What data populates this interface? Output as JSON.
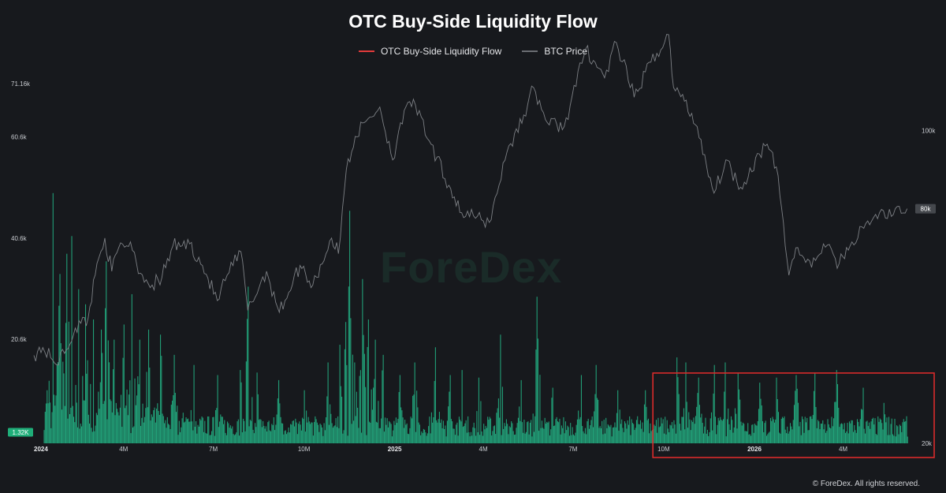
{
  "page": {
    "title": "OTC Buy-Side Liquidity Flow",
    "watermark": "ForeDex",
    "copyright": "© ForeDex. All rights reserved."
  },
  "legend": [
    {
      "label": "OTC Buy-Side Liquidity Flow",
      "color": "#e23b3b"
    },
    {
      "label": "BTC Price",
      "color": "#6a6d72"
    }
  ],
  "colors": {
    "background": "#17191d",
    "bars": "#22a37a",
    "price_line": "#7d8085",
    "highlight_box": "#d92b2b",
    "current_flow_tag": "#1fae79",
    "current_price_tag": "#45484d"
  },
  "chart_data": {
    "type": "bar",
    "title": "OTC Buy-Side Liquidity Flow",
    "x_axis": {
      "start": "2024-01-01",
      "end": "2026-06-10",
      "ticks": [
        {
          "date": "2024-01-01",
          "label": "2024",
          "bold": true
        },
        {
          "date": "2024-04-01",
          "label": "4M",
          "bold": false
        },
        {
          "date": "2024-07-01",
          "label": "7M",
          "bold": false
        },
        {
          "date": "2024-10-01",
          "label": "10M",
          "bold": false
        },
        {
          "date": "2025-01-01",
          "label": "2025",
          "bold": true
        },
        {
          "date": "2025-04-01",
          "label": "4M",
          "bold": false
        },
        {
          "date": "2025-07-01",
          "label": "7M",
          "bold": false
        },
        {
          "date": "2025-10-01",
          "label": "10M",
          "bold": false
        },
        {
          "date": "2026-01-01",
          "label": "2026",
          "bold": true
        },
        {
          "date": "2026-04-01",
          "label": "4M",
          "bold": false
        }
      ]
    },
    "left_axis": {
      "name": "OTC Buy-Side Liquidity Flow",
      "ylim": [
        0,
        71160
      ],
      "ticks": [
        {
          "value": 20600,
          "label": "20.6k"
        },
        {
          "value": 40600,
          "label": "40.6k"
        },
        {
          "value": 60600,
          "label": "60.6k"
        },
        {
          "value": 71160,
          "label": "71.16k"
        }
      ]
    },
    "right_axis": {
      "name": "BTC Price",
      "ylim": [
        20000,
        112000
      ],
      "ticks": [
        {
          "value": 20000,
          "label": "20k"
        },
        {
          "value": 100000,
          "label": "100k"
        }
      ]
    },
    "current_values": {
      "flow": "1.32K",
      "price": "80k"
    },
    "price_series": {
      "name": "BTC Price",
      "points": [
        [
          "2024-01-01",
          42500
        ],
        [
          "2024-01-10",
          44500
        ],
        [
          "2024-01-22",
          40500
        ],
        [
          "2024-02-01",
          43000
        ],
        [
          "2024-02-12",
          49500
        ],
        [
          "2024-02-25",
          52000
        ],
        [
          "2024-03-05",
          66000
        ],
        [
          "2024-03-13",
          72500
        ],
        [
          "2024-03-20",
          64000
        ],
        [
          "2024-03-27",
          70000
        ],
        [
          "2024-04-08",
          71500
        ],
        [
          "2024-04-18",
          63500
        ],
        [
          "2024-04-30",
          60500
        ],
        [
          "2024-05-10",
          62500
        ],
        [
          "2024-05-21",
          70500
        ],
        [
          "2024-06-07",
          71000
        ],
        [
          "2024-06-20",
          65500
        ],
        [
          "2024-07-05",
          56500
        ],
        [
          "2024-07-15",
          63000
        ],
        [
          "2024-07-29",
          69000
        ],
        [
          "2024-08-05",
          54000
        ],
        [
          "2024-08-24",
          64000
        ],
        [
          "2024-09-06",
          53500
        ],
        [
          "2024-09-27",
          65500
        ],
        [
          "2024-10-10",
          60500
        ],
        [
          "2024-10-29",
          72500
        ],
        [
          "2024-11-05",
          68500
        ],
        [
          "2024-11-13",
          90000
        ],
        [
          "2024-11-22",
          98500
        ],
        [
          "2024-12-05",
          103000
        ],
        [
          "2024-12-17",
          106000
        ],
        [
          "2024-12-30",
          92500
        ],
        [
          "2025-01-07",
          102000
        ],
        [
          "2025-01-20",
          108000
        ],
        [
          "2025-02-03",
          98000
        ],
        [
          "2025-02-25",
          86000
        ],
        [
          "2025-03-10",
          79000
        ],
        [
          "2025-04-07",
          76500
        ],
        [
          "2025-04-25",
          94500
        ],
        [
          "2025-05-12",
          104000
        ],
        [
          "2025-05-22",
          111000
        ],
        [
          "2025-06-05",
          102000
        ],
        [
          "2025-06-22",
          101000
        ],
        [
          "2025-07-14",
          121000
        ],
        [
          "2025-08-02",
          113500
        ],
        [
          "2025-08-14",
          122500
        ],
        [
          "2025-09-01",
          108500
        ],
        [
          "2025-09-18",
          117500
        ],
        [
          "2025-10-06",
          124500
        ],
        [
          "2025-10-11",
          111000
        ],
        [
          "2025-10-22",
          107500
        ],
        [
          "2025-11-04",
          101000
        ],
        [
          "2025-11-21",
          84000
        ],
        [
          "2025-12-03",
          92500
        ],
        [
          "2025-12-18",
          85500
        ],
        [
          "2026-01-06",
          94000
        ],
        [
          "2026-01-14",
          96500
        ],
        [
          "2026-01-25",
          88500
        ],
        [
          "2026-02-05",
          63000
        ],
        [
          "2026-02-12",
          70000
        ],
        [
          "2026-02-28",
          65000
        ],
        [
          "2026-03-12",
          71000
        ],
        [
          "2026-03-28",
          66000
        ],
        [
          "2026-04-10",
          71500
        ],
        [
          "2026-04-22",
          75000
        ],
        [
          "2026-05-08",
          79000
        ],
        [
          "2026-05-22",
          78500
        ],
        [
          "2026-06-05",
          80000
        ]
      ]
    },
    "flow_series": {
      "name": "OTC Buy-Side Liquidity Flow",
      "peaks": [
        [
          "2024-01-14",
          10500
        ],
        [
          "2024-01-20",
          49500
        ],
        [
          "2024-01-27",
          33500
        ],
        [
          "2024-02-03",
          37500
        ],
        [
          "2024-02-08",
          41000
        ],
        [
          "2024-02-15",
          30500
        ],
        [
          "2024-02-22",
          27500
        ],
        [
          "2024-03-01",
          24500
        ],
        [
          "2024-03-09",
          22500
        ],
        [
          "2024-03-14",
          36000
        ],
        [
          "2024-03-22",
          20500
        ],
        [
          "2024-04-01",
          23500
        ],
        [
          "2024-04-09",
          29500
        ],
        [
          "2024-04-17",
          20500
        ],
        [
          "2024-04-26",
          22500
        ],
        [
          "2024-05-08",
          21500
        ],
        [
          "2024-05-22",
          17500
        ],
        [
          "2024-06-11",
          15500
        ],
        [
          "2024-07-05",
          13500
        ],
        [
          "2024-07-28",
          14500
        ],
        [
          "2024-08-05",
          31000
        ],
        [
          "2024-08-14",
          14000
        ],
        [
          "2024-09-05",
          12500
        ],
        [
          "2024-10-01",
          10500
        ],
        [
          "2024-10-25",
          16000
        ],
        [
          "2024-11-06",
          19500
        ],
        [
          "2024-11-12",
          24000
        ],
        [
          "2024-11-16",
          46000
        ],
        [
          "2024-11-21",
          16000
        ],
        [
          "2024-11-29",
          32500
        ],
        [
          "2024-12-05",
          24500
        ],
        [
          "2024-12-12",
          20500
        ],
        [
          "2024-12-20",
          17500
        ],
        [
          "2025-01-06",
          13500
        ],
        [
          "2025-01-21",
          16000
        ],
        [
          "2025-02-11",
          19000
        ],
        [
          "2025-02-26",
          13500
        ],
        [
          "2025-03-10",
          14500
        ],
        [
          "2025-03-27",
          13000
        ],
        [
          "2025-04-18",
          21500
        ],
        [
          "2025-05-09",
          12500
        ],
        [
          "2025-05-25",
          29000
        ],
        [
          "2025-06-10",
          11000
        ],
        [
          "2025-07-09",
          13500
        ],
        [
          "2025-07-24",
          15500
        ],
        [
          "2025-08-15",
          10500
        ],
        [
          "2025-09-12",
          10500
        ],
        [
          "2025-10-14",
          17000
        ],
        [
          "2025-10-23",
          16000
        ],
        [
          "2025-11-05",
          13000
        ],
        [
          "2025-11-21",
          15500
        ],
        [
          "2025-12-02",
          16000
        ],
        [
          "2025-12-15",
          14000
        ],
        [
          "2026-01-06",
          12000
        ],
        [
          "2026-01-23",
          13000
        ],
        [
          "2026-02-12",
          13500
        ],
        [
          "2026-03-03",
          14000
        ],
        [
          "2026-03-25",
          14500
        ],
        [
          "2026-04-21",
          11000
        ],
        [
          "2026-05-12",
          8000
        ],
        [
          "2026-06-05",
          1320
        ]
      ]
    },
    "highlight_region": {
      "start": "2025-09-20",
      "end": "2026-06-10",
      "y_top": 13900
    }
  }
}
